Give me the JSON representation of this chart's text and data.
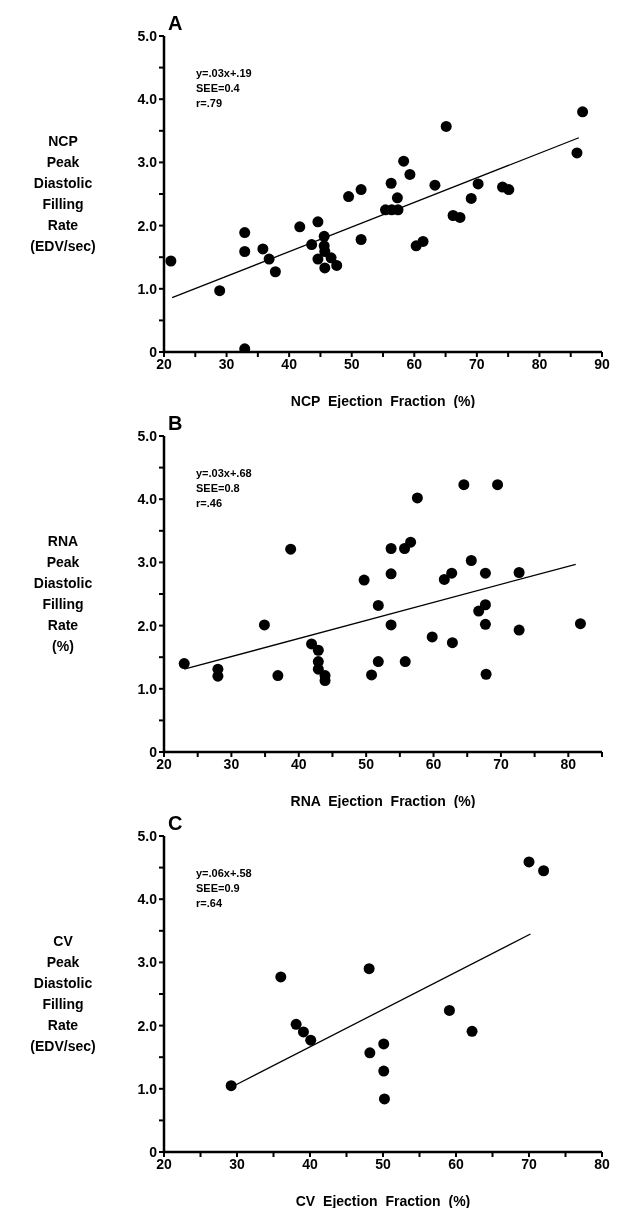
{
  "chart_data": [
    {
      "type": "scatter",
      "title": "A",
      "xlabel": "NCP Ejection Fraction (%)",
      "ylabel": "NCP Peak Diastolic Filling Rate (EDV/sec)",
      "annotations": [
        "y=.03x+.19",
        "SEE=0.4",
        "r=.79"
      ],
      "xlim": [
        20,
        90
      ],
      "xticks": [
        20,
        {
          "value": 25,
          "label": null
        },
        30,
        {
          "value": 35,
          "label": null
        },
        40,
        {
          "value": 45,
          "label": null
        },
        50,
        {
          "value": 55,
          "label": null
        },
        60,
        {
          "value": 65,
          "label": null
        },
        70,
        {
          "value": 75,
          "label": null
        },
        80,
        {
          "value": 85,
          "label": null
        },
        90
      ],
      "ylim": [
        0,
        5
      ],
      "yticks": [
        {
          "value": 0,
          "label": "0"
        },
        {
          "value": 0.5,
          "label": null
        },
        {
          "value": 1,
          "label": "1.0"
        },
        {
          "value": 1.5,
          "label": null
        },
        {
          "value": 2,
          "label": "2.0"
        },
        {
          "value": 2.5,
          "label": null
        },
        {
          "value": 3,
          "label": "3.0"
        },
        {
          "value": 3.5,
          "label": null
        },
        {
          "value": 4,
          "label": "4.0"
        },
        {
          "value": 4.5,
          "label": null
        },
        {
          "value": 5,
          "label": "5.0"
        }
      ],
      "series": [
        {
          "marker": "circle",
          "color": "#000000",
          "x": [
            21.1,
            28.9,
            32.9,
            32.9,
            32.9,
            35.8,
            36.8,
            37.8,
            41.7,
            43.6,
            44.6,
            44.6,
            45.6,
            45.6,
            45.7,
            45.7,
            46.7,
            47.6,
            49.5,
            51.5,
            51.5,
            55.4,
            56.4,
            56.3,
            57.4,
            57.3,
            58.3,
            59.3,
            60.3,
            61.4,
            63.3,
            65.1,
            66.2,
            67.3,
            69.1,
            70.2,
            74.1,
            75.1,
            86.0,
            86.9
          ],
          "values": [
            1.44,
            0.97,
            1.89,
            1.59,
            0.05,
            1.63,
            1.47,
            1.27,
            1.98,
            1.7,
            2.06,
            1.47,
            1.83,
            1.68,
            1.59,
            1.33,
            1.49,
            1.37,
            2.46,
            2.57,
            1.78,
            2.25,
            2.25,
            2.67,
            2.25,
            2.44,
            3.02,
            2.81,
            1.68,
            1.75,
            2.64,
            3.57,
            2.16,
            2.13,
            2.43,
            2.66,
            2.61,
            2.57,
            3.15,
            3.8
          ]
        },
        {
          "type": "line",
          "color": "#000000",
          "x": [
            21.3,
            86.3
          ],
          "values": [
            0.86,
            3.39
          ]
        }
      ]
    },
    {
      "type": "scatter",
      "title": "B",
      "xlabel": "RNA Ejection Fraction (%)",
      "ylabel": "RNA Peak Diastolic Filling Rate (%)",
      "annotations": [
        "y=.03x+.68",
        "SEE=0.8",
        "r=.46"
      ],
      "xlim": [
        20,
        85
      ],
      "xticks": [
        20,
        {
          "value": 25,
          "label": null
        },
        30,
        {
          "value": 35,
          "label": null
        },
        40,
        {
          "value": 45,
          "label": null
        },
        50,
        {
          "value": 55,
          "label": null
        },
        60,
        {
          "value": 65,
          "label": null
        },
        70,
        {
          "value": 75,
          "label": null
        },
        80,
        {
          "value": 85,
          "label": null
        }
      ],
      "ylim": [
        0,
        5
      ],
      "yticks": [
        {
          "value": 0,
          "label": "0"
        },
        {
          "value": 0.5,
          "label": null
        },
        {
          "value": 1,
          "label": "1.0"
        },
        {
          "value": 1.5,
          "label": null
        },
        {
          "value": 2,
          "label": "2.0"
        },
        {
          "value": 2.5,
          "label": null
        },
        {
          "value": 3,
          "label": "3.0"
        },
        {
          "value": 3.5,
          "label": null
        },
        {
          "value": 4,
          "label": "4.0"
        },
        {
          "value": 4.5,
          "label": null
        },
        {
          "value": 5,
          "label": "5.0"
        }
      ],
      "series": [
        {
          "marker": "circle",
          "color": "#000000",
          "x": [
            23.0,
            28.0,
            28.0,
            34.9,
            36.9,
            38.8,
            41.9,
            42.9,
            42.9,
            42.9,
            43.9,
            43.9,
            49.7,
            50.8,
            51.8,
            51.8,
            53.7,
            53.7,
            53.7,
            55.7,
            55.8,
            56.6,
            57.6,
            59.8,
            61.6,
            62.7,
            62.8,
            64.5,
            65.6,
            66.7,
            67.7,
            67.7,
            67.7,
            67.8,
            69.5,
            72.7,
            72.7,
            81.8
          ],
          "values": [
            1.4,
            1.31,
            1.2,
            2.01,
            1.21,
            3.21,
            1.71,
            1.61,
            1.43,
            1.31,
            1.21,
            1.13,
            2.72,
            1.22,
            2.32,
            1.43,
            3.22,
            2.82,
            2.01,
            3.22,
            1.43,
            3.32,
            4.02,
            1.82,
            2.73,
            2.83,
            1.73,
            4.23,
            3.03,
            2.23,
            2.83,
            2.33,
            2.02,
            1.23,
            4.23,
            2.84,
            1.93,
            2.03
          ]
        },
        {
          "type": "line",
          "color": "#000000",
          "x": [
            23.0,
            81.1
          ],
          "values": [
            1.31,
            2.97
          ]
        }
      ]
    },
    {
      "type": "scatter",
      "title": "C",
      "xlabel": "CV Ejection Fraction (%)",
      "ylabel": "CV Peak Diastolic Filling Rate (EDV/sec)",
      "annotations": [
        "y=.06x+.58",
        "SEE=0.9",
        "r=.64"
      ],
      "xlim": [
        20,
        80
      ],
      "xticks": [
        20,
        {
          "value": 25,
          "label": null
        },
        30,
        {
          "value": 35,
          "label": null
        },
        40,
        {
          "value": 45,
          "label": null
        },
        50,
        {
          "value": 55,
          "label": null
        },
        60,
        {
          "value": 65,
          "label": null
        },
        70,
        {
          "value": 75,
          "label": null
        },
        80
      ],
      "ylim": [
        0,
        5
      ],
      "yticks": [
        {
          "value": 0,
          "label": "0"
        },
        {
          "value": 0.5,
          "label": null
        },
        {
          "value": 1,
          "label": "1.0"
        },
        {
          "value": 1.5,
          "label": null
        },
        {
          "value": 2,
          "label": "2.0"
        },
        {
          "value": 2.5,
          "label": null
        },
        {
          "value": 3,
          "label": "3.0"
        },
        {
          "value": 3.5,
          "label": null
        },
        {
          "value": 4,
          "label": "4.0"
        },
        {
          "value": 4.5,
          "label": null
        },
        {
          "value": 5,
          "label": "5.0"
        }
      ],
      "series": [
        {
          "marker": "circle",
          "color": "#000000",
          "x": [
            29.2,
            36.0,
            38.1,
            39.1,
            40.1,
            48.1,
            48.2,
            50.1,
            50.1,
            50.2,
            59.1,
            62.2,
            70.0,
            72.0
          ],
          "values": [
            1.05,
            2.77,
            2.02,
            1.9,
            1.77,
            2.9,
            1.57,
            1.71,
            1.28,
            0.84,
            2.24,
            1.91,
            4.59,
            4.45
          ]
        },
        {
          "type": "line",
          "color": "#000000",
          "x": [
            29.8,
            70.2
          ],
          "values": [
            1.06,
            3.45
          ]
        }
      ]
    }
  ]
}
